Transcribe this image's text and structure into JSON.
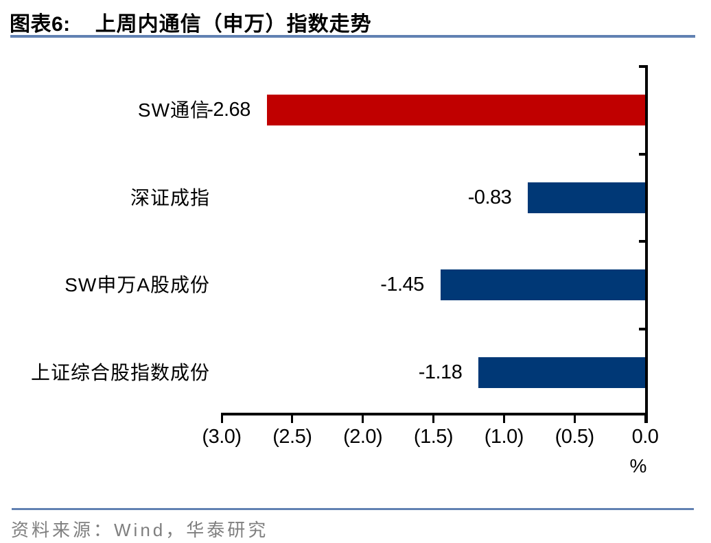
{
  "header": {
    "figure_label": "图表6:",
    "figure_title": "上周内通信（申万）指数走势"
  },
  "chart_data": {
    "type": "bar",
    "orientation": "horizontal",
    "title": "上周内通信（申万）指数走势",
    "categories": [
      "SW通信",
      "深证成指",
      "SW申万A股成份",
      "上证综合股指数成份"
    ],
    "values": [
      -2.68,
      -0.83,
      -1.45,
      -1.18
    ],
    "value_labels": [
      "-2.68",
      "-0.83",
      "-1.45",
      "-1.18"
    ],
    "bar_colors": [
      "#c00000",
      "#003876",
      "#003876",
      "#003876"
    ],
    "xlabel": "%",
    "xlim": [
      -3.0,
      0.0
    ],
    "x_ticks": [
      -3.0,
      -2.5,
      -2.0,
      -1.5,
      -1.0,
      -0.5,
      0.0
    ],
    "x_tick_labels": [
      "(3.0)",
      "(2.5)",
      "(2.0)",
      "(1.5)",
      "(1.0)",
      "(0.5)",
      "0.0"
    ],
    "grid": false,
    "legend": false,
    "value_axis_position": "bottom",
    "category_axis_position": "right"
  },
  "footer": {
    "source": "资料来源：Wind，华泰研究"
  },
  "colors": {
    "accent_rule": "#6181b2",
    "negative_highlight_red": "#c00000",
    "bar_navy": "#003876",
    "source_gray": "#7f7f7f",
    "axis_black": "#000000"
  }
}
